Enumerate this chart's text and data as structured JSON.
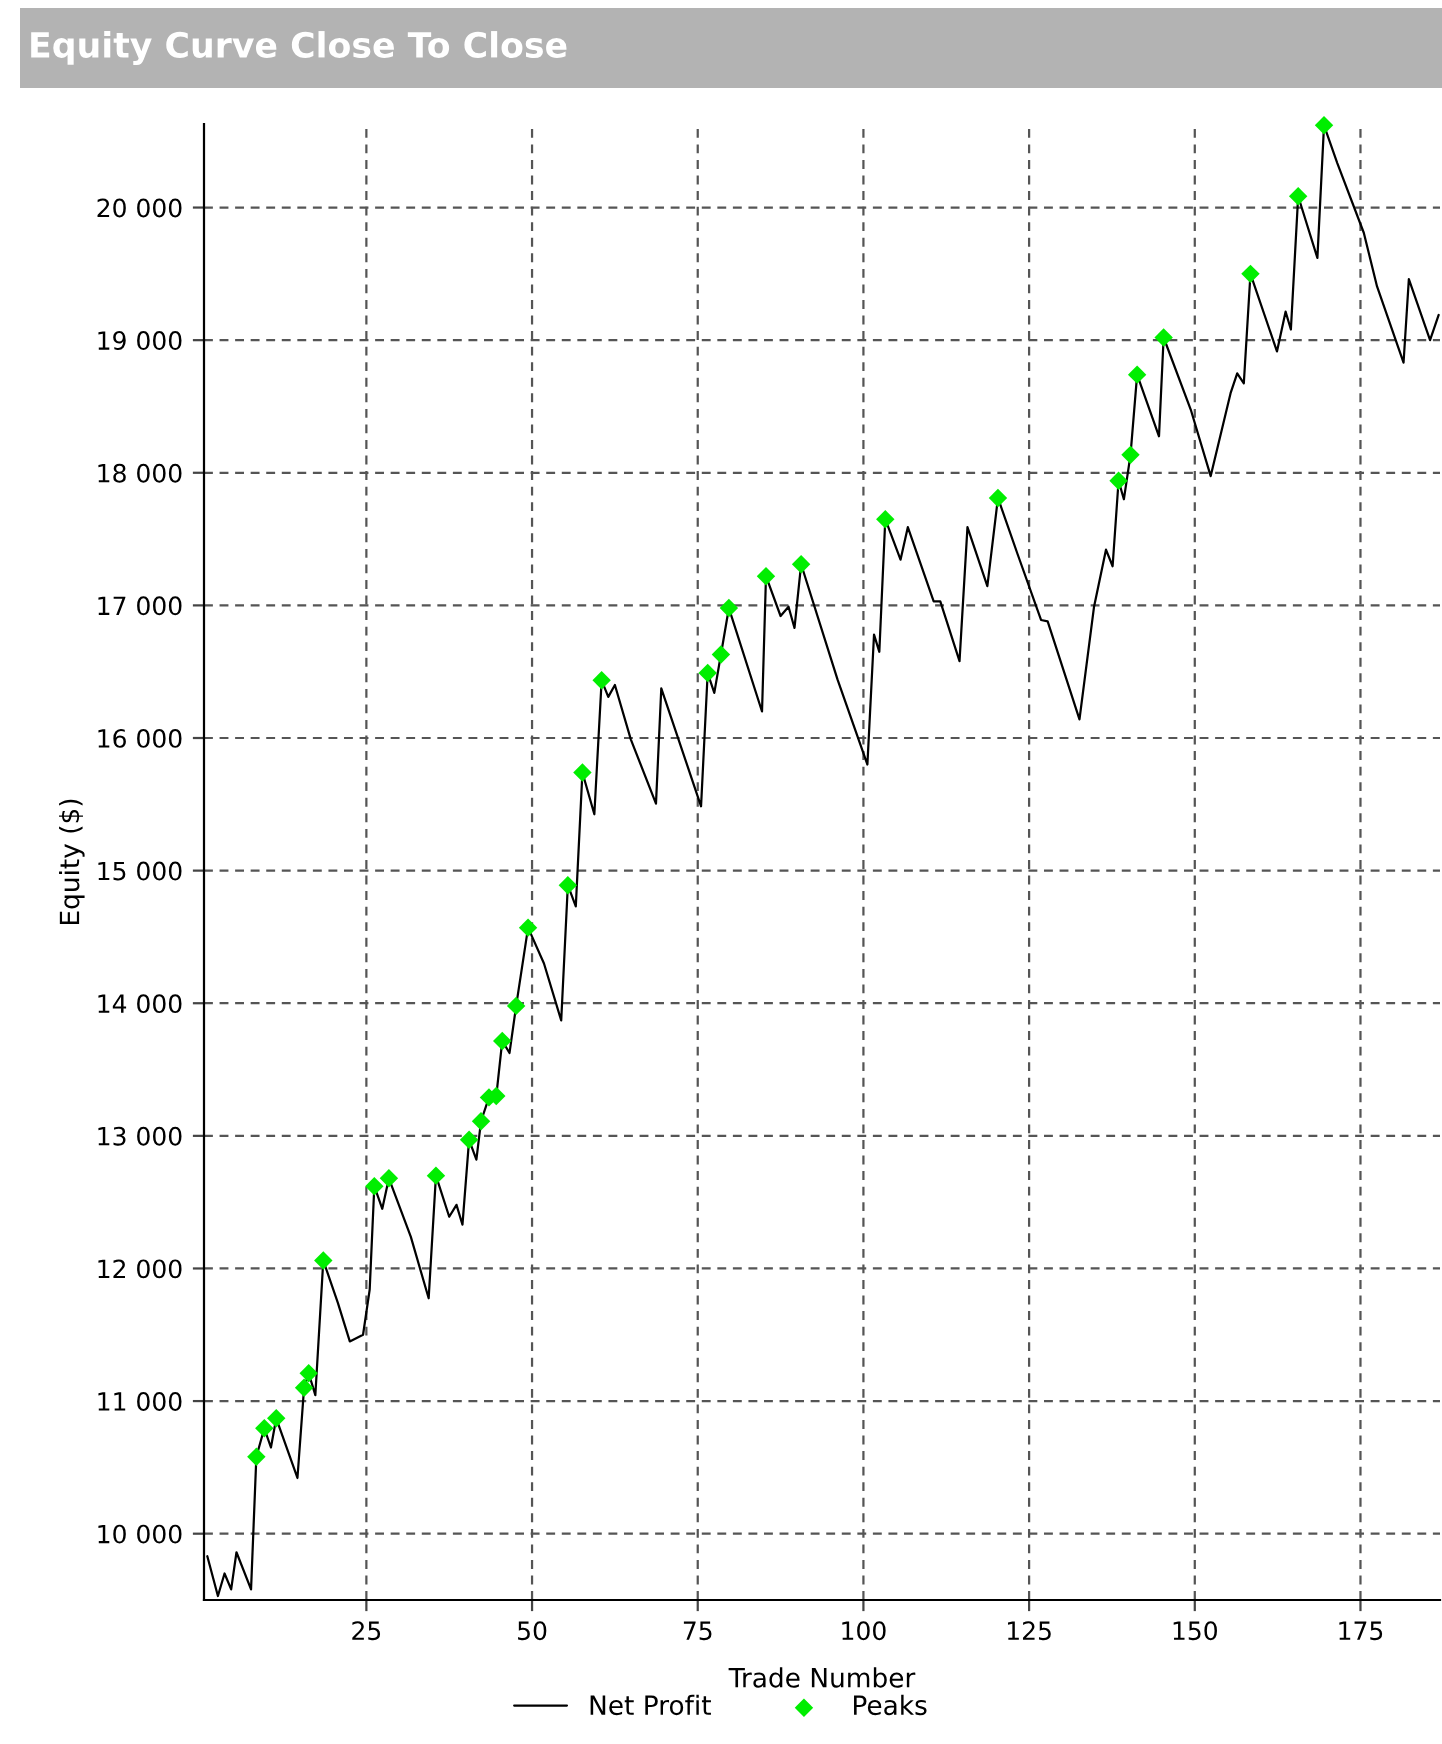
{
  "chart_data": {
    "type": "line",
    "title": "Equity Curve Close To Close",
    "xlabel": "Trade Number",
    "ylabel": "Equity ($)",
    "xlim": [
      0.5,
      187
    ],
    "xticks": [
      25,
      50,
      75,
      100,
      125,
      150,
      175
    ],
    "ylim": [
      9500,
      20630
    ],
    "yticks": [
      {
        "value": 10000,
        "label": "10 000"
      },
      {
        "value": 11000,
        "label": "11 000"
      },
      {
        "value": 12000,
        "label": "12 000"
      },
      {
        "value": 13000,
        "label": "13 000"
      },
      {
        "value": 14000,
        "label": "14 000"
      },
      {
        "value": 15000,
        "label": "15 000"
      },
      {
        "value": 16000,
        "label": "16 000"
      },
      {
        "value": 17000,
        "label": "17 000"
      },
      {
        "value": 18000,
        "label": "18 000"
      },
      {
        "value": 19000,
        "label": "19 000"
      },
      {
        "value": 20000,
        "label": "20 000"
      }
    ],
    "grid": true,
    "legend": "bottom",
    "series": [
      {
        "name": "Net Profit",
        "color": "#000000",
        "marker": "none",
        "line_style": "solid",
        "x": [
          1,
          2.6,
          3.6,
          4.6,
          5.4,
          7.6,
          8.4,
          9.6,
          10.6,
          11.4,
          14.6,
          15.6,
          16.3,
          17.3,
          18.5,
          20.7,
          22.5,
          24.5,
          25.5,
          26.2,
          27.4,
          28.4,
          31.7,
          34.4,
          35.5,
          37.5,
          38.6,
          39.5,
          40.5,
          41.6,
          42.3,
          43.5,
          44.6,
          45.5,
          46.6,
          47.6,
          49.4,
          51.8,
          54.4,
          55.4,
          56.6,
          57.6,
          59.4,
          60.5,
          61.5,
          62.5,
          64.9,
          68.7,
          69.5,
          75.5,
          76.5,
          77.5,
          78.5,
          79.7,
          84.7,
          85.3,
          87.5,
          88.7,
          89.6,
          90.6,
          96.1,
          100.6,
          101.6,
          102.4,
          103.3,
          105.6,
          106.7,
          110.6,
          111.6,
          114.5,
          115.7,
          118.7,
          120.3,
          123.2,
          126.8,
          127.8,
          132.6,
          134.8,
          136.6,
          137.6,
          138.5,
          139.3,
          140.3,
          141.3,
          144.6,
          145.3,
          149.4,
          152.4,
          155.4,
          156.4,
          157.4,
          158.4,
          162.4,
          163.7,
          164.5,
          165.6,
          168.5,
          169.5,
          171.5,
          175.5,
          177.5,
          181.5,
          182.3,
          185.5,
          186.8
        ],
        "values": [
          9830,
          9530,
          9700,
          9580,
          9860,
          9580,
          10580,
          10795,
          10650,
          10870,
          10420,
          11100,
          11210,
          11045,
          12060,
          11740,
          11450,
          11500,
          11840,
          12620,
          12450,
          12680,
          12240,
          11775,
          12700,
          12390,
          12480,
          12330,
          12970,
          12820,
          13110,
          13290,
          13300,
          13715,
          13625,
          13980,
          14570,
          14300,
          13870,
          14890,
          14730,
          15740,
          15425,
          16435,
          16310,
          16400,
          15990,
          15505,
          16375,
          15485,
          16490,
          16340,
          16630,
          16980,
          16200,
          17220,
          16920,
          16990,
          16830,
          17310,
          16440,
          15800,
          16780,
          16650,
          17650,
          17345,
          17590,
          17030,
          17030,
          16580,
          17590,
          17145,
          17810,
          17395,
          16890,
          16880,
          16140,
          16990,
          17420,
          17295,
          17940,
          17800,
          18135,
          18740,
          18275,
          19020,
          18475,
          17975,
          18600,
          18750,
          18675,
          19500,
          18915,
          19215,
          19080,
          20085,
          19620,
          20620,
          20335,
          19810,
          19405,
          18830,
          19460,
          19000,
          19190
        ]
      },
      {
        "name": "Peaks",
        "type": "scatter",
        "color": "#00ee00",
        "marker": "diamond",
        "x": [
          8.4,
          9.6,
          11.4,
          15.6,
          16.3,
          18.5,
          26.2,
          28.4,
          35.5,
          40.5,
          42.3,
          43.5,
          44.6,
          45.5,
          47.6,
          49.4,
          55.4,
          57.6,
          60.5,
          76.5,
          78.5,
          79.7,
          85.3,
          90.6,
          103.3,
          120.3,
          138.5,
          140.3,
          141.3,
          145.3,
          158.4,
          165.6,
          169.5
        ],
        "values": [
          10580,
          10795,
          10870,
          11100,
          11210,
          12060,
          12620,
          12680,
          12700,
          12970,
          13110,
          13290,
          13300,
          13715,
          13980,
          14570,
          14890,
          15740,
          16435,
          16490,
          16630,
          16980,
          17220,
          17310,
          17650,
          17810,
          17940,
          18135,
          18740,
          19020,
          19500,
          20085,
          20620
        ]
      }
    ]
  }
}
